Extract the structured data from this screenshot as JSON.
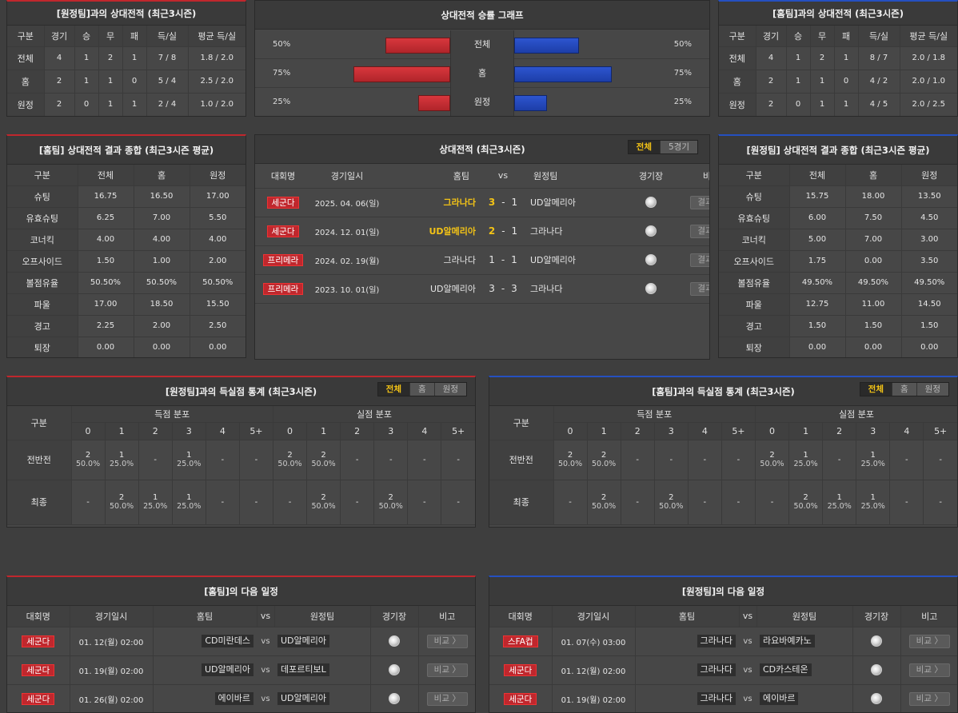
{
  "top_left": {
    "title": "[원정팀]과의 상대전적 (최근3시즌)",
    "headers": [
      "구분",
      "경기",
      "승",
      "무",
      "패",
      "득/실",
      "평균 득/실"
    ],
    "rows": [
      [
        "전체",
        "4",
        "1",
        "2",
        "1",
        "7 / 8",
        "1.8 / 2.0"
      ],
      [
        "홈",
        "2",
        "1",
        "1",
        "0",
        "5 / 4",
        "2.5 / 2.0"
      ],
      [
        "원정",
        "2",
        "0",
        "1",
        "1",
        "2 / 4",
        "1.0 / 2.0"
      ]
    ]
  },
  "win_graph": {
    "title": "상대전적 승률 그래프",
    "rows": [
      {
        "label": "전체",
        "home_pct": "50%",
        "away_pct": "50%",
        "home_value": 50,
        "away_value": 50
      },
      {
        "label": "홈",
        "home_pct": "75%",
        "away_pct": "75%",
        "home_value": 75,
        "away_value": 75
      },
      {
        "label": "원정",
        "home_pct": "25%",
        "away_pct": "25%",
        "home_value": 25,
        "away_value": 25
      }
    ]
  },
  "top_right": {
    "title": "[홈팀]과의 상대전적 (최근3시즌)",
    "headers": [
      "구분",
      "경기",
      "승",
      "무",
      "패",
      "득/실",
      "평균 득/실"
    ],
    "rows": [
      [
        "전체",
        "4",
        "1",
        "2",
        "1",
        "8 / 7",
        "2.0 / 1.8"
      ],
      [
        "홈",
        "2",
        "1",
        "1",
        "0",
        "4 / 2",
        "2.0 / 1.0"
      ],
      [
        "원정",
        "2",
        "0",
        "1",
        "1",
        "4 / 5",
        "2.0 / 2.5"
      ]
    ]
  },
  "mid_left": {
    "title": "[홈팀] 상대전적 결과 종합 (최근3시즌 평균)",
    "headers": [
      "구분",
      "전체",
      "홈",
      "원정"
    ],
    "rows": [
      [
        "슈팅",
        "16.75",
        "16.50",
        "17.00"
      ],
      [
        "유효슈팅",
        "6.25",
        "7.00",
        "5.50"
      ],
      [
        "코너킥",
        "4.00",
        "4.00",
        "4.00"
      ],
      [
        "오프사이드",
        "1.50",
        "1.00",
        "2.00"
      ],
      [
        "볼점유율",
        "50.50%",
        "50.50%",
        "50.50%"
      ],
      [
        "파울",
        "17.00",
        "18.50",
        "15.50"
      ],
      [
        "경고",
        "2.25",
        "2.00",
        "2.50"
      ],
      [
        "퇴장",
        "0.00",
        "0.00",
        "0.00"
      ]
    ]
  },
  "mid_center": {
    "title": "상대전적 (최근3시즌)",
    "toggle": [
      "전체",
      "5경기"
    ],
    "headers": {
      "league": "대회명",
      "date": "경기일시",
      "home": "홈팀",
      "vs": "vs",
      "away": "원정팀",
      "venue": "경기장",
      "note": "비고"
    },
    "matches": [
      {
        "league": "세군다",
        "date": "2025. 04. 06(일)",
        "home": "그라나다",
        "home_score": "3",
        "dash": "-",
        "away_score": "1",
        "away": "UD알메리아",
        "button": "결과 〉"
      },
      {
        "league": "세군다",
        "date": "2024. 12. 01(일)",
        "home": "UD알메리아",
        "home_score": "2",
        "dash": "-",
        "away_score": "1",
        "away": "그라나다",
        "button": "결과 〉"
      },
      {
        "league": "프리메라",
        "date": "2024. 02. 19(월)",
        "home": "그라나다",
        "home_score": "1",
        "dash": "-",
        "away_score": "1",
        "away": "UD알메리아",
        "button": "결과 〉"
      },
      {
        "league": "프리메라",
        "date": "2023. 10. 01(일)",
        "home": "UD알메리아",
        "home_score": "3",
        "dash": "-",
        "away_score": "3",
        "away": "그라나다",
        "button": "결과 〉"
      }
    ]
  },
  "mid_right": {
    "title": "[원정팀] 상대전적 결과 종합 (최근3시즌 평균)",
    "headers": [
      "구분",
      "전체",
      "홈",
      "원정"
    ],
    "rows": [
      [
        "슈팅",
        "15.75",
        "18.00",
        "13.50"
      ],
      [
        "유효슈팅",
        "6.00",
        "7.50",
        "4.50"
      ],
      [
        "코너킥",
        "5.00",
        "7.00",
        "3.00"
      ],
      [
        "오프사이드",
        "1.75",
        "0.00",
        "3.50"
      ],
      [
        "볼점유율",
        "49.50%",
        "49.50%",
        "49.50%"
      ],
      [
        "파울",
        "12.75",
        "11.00",
        "14.50"
      ],
      [
        "경고",
        "1.50",
        "1.50",
        "1.50"
      ],
      [
        "퇴장",
        "0.00",
        "0.00",
        "0.00"
      ]
    ]
  },
  "goals_left": {
    "title": "[원정팀]과의 득실점 통계 (최근3시즌)",
    "toggle": [
      "전체",
      "홈",
      "원정"
    ],
    "col_gubun": "구분",
    "scored": "득점 분포",
    "conceded": "실점 분포",
    "buckets": [
      "0",
      "1",
      "2",
      "3",
      "4",
      "5+"
    ],
    "rows": [
      {
        "label": "전반전",
        "cells": [
          [
            "2",
            "50.0%"
          ],
          [
            "1",
            "25.0%"
          ],
          [
            "-",
            ""
          ],
          [
            "1",
            "25.0%"
          ],
          [
            "-",
            ""
          ],
          [
            "-",
            ""
          ],
          [
            "2",
            "50.0%"
          ],
          [
            "2",
            "50.0%"
          ],
          [
            "-",
            ""
          ],
          [
            "-",
            ""
          ],
          [
            "-",
            ""
          ],
          [
            "-",
            ""
          ]
        ]
      },
      {
        "label": "최종",
        "cells": [
          [
            "-",
            ""
          ],
          [
            "2",
            "50.0%"
          ],
          [
            "1",
            "25.0%"
          ],
          [
            "1",
            "25.0%"
          ],
          [
            "-",
            ""
          ],
          [
            "-",
            ""
          ],
          [
            "-",
            ""
          ],
          [
            "2",
            "50.0%"
          ],
          [
            "-",
            ""
          ],
          [
            "2",
            "50.0%"
          ],
          [
            "-",
            ""
          ],
          [
            "-",
            ""
          ]
        ]
      }
    ]
  },
  "goals_right": {
    "title": "[홈팀]과의 득실점 통계 (최근3시즌)",
    "toggle": [
      "전체",
      "홈",
      "원정"
    ],
    "col_gubun": "구분",
    "scored": "득점 분포",
    "conceded": "실점 분포",
    "buckets": [
      "0",
      "1",
      "2",
      "3",
      "4",
      "5+"
    ],
    "rows": [
      {
        "label": "전반전",
        "cells": [
          [
            "2",
            "50.0%"
          ],
          [
            "2",
            "50.0%"
          ],
          [
            "-",
            ""
          ],
          [
            "-",
            ""
          ],
          [
            "-",
            ""
          ],
          [
            "-",
            ""
          ],
          [
            "2",
            "50.0%"
          ],
          [
            "1",
            "25.0%"
          ],
          [
            "-",
            ""
          ],
          [
            "1",
            "25.0%"
          ],
          [
            "-",
            ""
          ],
          [
            "-",
            ""
          ]
        ]
      },
      {
        "label": "최종",
        "cells": [
          [
            "-",
            ""
          ],
          [
            "2",
            "50.0%"
          ],
          [
            "-",
            ""
          ],
          [
            "2",
            "50.0%"
          ],
          [
            "-",
            ""
          ],
          [
            "-",
            ""
          ],
          [
            "-",
            ""
          ],
          [
            "2",
            "50.0%"
          ],
          [
            "1",
            "25.0%"
          ],
          [
            "1",
            "25.0%"
          ],
          [
            "-",
            ""
          ],
          [
            "-",
            ""
          ]
        ]
      }
    ]
  },
  "next_left": {
    "title": "[홈팀]의 다음 일정",
    "headers": {
      "league": "대회명",
      "date": "경기일시",
      "home": "홈팀",
      "vs": "vs",
      "away": "원정팀",
      "venue": "경기장",
      "note": "비고"
    },
    "matches": [
      {
        "league": "세군다",
        "date": "01. 12(월) 02:00",
        "home": "CD미란데스",
        "vs": "vs",
        "away": "UD알메리아",
        "button": "비교 〉"
      },
      {
        "league": "세군다",
        "date": "01. 19(월) 02:00",
        "home": "UD알메리아",
        "vs": "vs",
        "away": "데포르티보L",
        "button": "비교 〉"
      },
      {
        "league": "세군다",
        "date": "01. 26(월) 02:00",
        "home": "에이바르",
        "vs": "vs",
        "away": "UD알메리아",
        "button": "비교 〉"
      }
    ]
  },
  "next_right": {
    "title": "[원정팀]의 다음 일정",
    "headers": {
      "league": "대회명",
      "date": "경기일시",
      "home": "홈팀",
      "vs": "vs",
      "away": "원정팀",
      "venue": "경기장",
      "note": "비고"
    },
    "matches": [
      {
        "league": "스FA컵",
        "date": "01. 07(수) 03:00",
        "home": "그라나다",
        "vs": "vs",
        "away": "라요바예카노",
        "button": "비교 〉"
      },
      {
        "league": "세군다",
        "date": "01. 12(월) 02:00",
        "home": "그라나다",
        "vs": "vs",
        "away": "CD카스테온",
        "button": "비교 〉"
      },
      {
        "league": "세군다",
        "date": "01. 19(월) 02:00",
        "home": "그라나다",
        "vs": "vs",
        "away": "에이바르",
        "button": "비교 〉"
      }
    ]
  },
  "colors": {
    "red": "#c0272d",
    "blue": "#2550c0",
    "highlight": "#f3c316"
  }
}
